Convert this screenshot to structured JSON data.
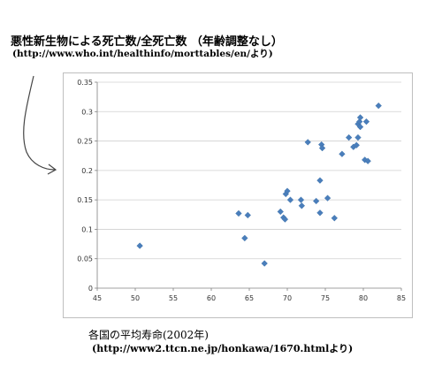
{
  "header": {
    "title": "悪性新生物による死亡数/全死亡数 （年齢調整なし）",
    "source": "(http://www.who.int/healthinfo/morttables/en/より)"
  },
  "footer": {
    "caption": "各国の平均寿命(2002年)",
    "source": "(http://www2.ttcn.ne.jp/honkawa/1670.htmlより)"
  },
  "chart_data": {
    "type": "scatter",
    "title": "",
    "xlabel": "",
    "ylabel": "",
    "xlim": [
      45,
      85
    ],
    "ylim": [
      0,
      0.35
    ],
    "x_ticks": [
      "45",
      "50",
      "55",
      "60",
      "65",
      "70",
      "75",
      "80",
      "85"
    ],
    "y_ticks": [
      "0",
      "0.05",
      "0.1",
      "0.15",
      "0.2",
      "0.25",
      "0.3",
      "0.35"
    ],
    "grid": "horizontal",
    "legend": "none",
    "marker_color": "#4a7ebb",
    "series": [
      {
        "points": [
          {
            "x": 50.6,
            "y": 0.072
          },
          {
            "x": 63.6,
            "y": 0.127
          },
          {
            "x": 64.4,
            "y": 0.085
          },
          {
            "x": 64.8,
            "y": 0.124
          },
          {
            "x": 67.0,
            "y": 0.042
          },
          {
            "x": 69.1,
            "y": 0.13
          },
          {
            "x": 69.5,
            "y": 0.12
          },
          {
            "x": 69.7,
            "y": 0.117
          },
          {
            "x": 69.8,
            "y": 0.16
          },
          {
            "x": 70.0,
            "y": 0.165
          },
          {
            "x": 70.4,
            "y": 0.15
          },
          {
            "x": 71.8,
            "y": 0.15
          },
          {
            "x": 71.9,
            "y": 0.14
          },
          {
            "x": 72.7,
            "y": 0.248
          },
          {
            "x": 73.8,
            "y": 0.148
          },
          {
            "x": 74.3,
            "y": 0.183
          },
          {
            "x": 74.3,
            "y": 0.128
          },
          {
            "x": 74.5,
            "y": 0.244
          },
          {
            "x": 74.6,
            "y": 0.238
          },
          {
            "x": 75.3,
            "y": 0.153
          },
          {
            "x": 76.2,
            "y": 0.119
          },
          {
            "x": 77.2,
            "y": 0.228
          },
          {
            "x": 78.1,
            "y": 0.256
          },
          {
            "x": 78.7,
            "y": 0.24
          },
          {
            "x": 79.1,
            "y": 0.243
          },
          {
            "x": 79.3,
            "y": 0.256
          },
          {
            "x": 79.3,
            "y": 0.279
          },
          {
            "x": 79.5,
            "y": 0.283
          },
          {
            "x": 79.6,
            "y": 0.29
          },
          {
            "x": 79.6,
            "y": 0.274
          },
          {
            "x": 80.2,
            "y": 0.218
          },
          {
            "x": 80.4,
            "y": 0.283
          },
          {
            "x": 80.6,
            "y": 0.216
          },
          {
            "x": 82.0,
            "y": 0.31
          }
        ]
      }
    ]
  }
}
